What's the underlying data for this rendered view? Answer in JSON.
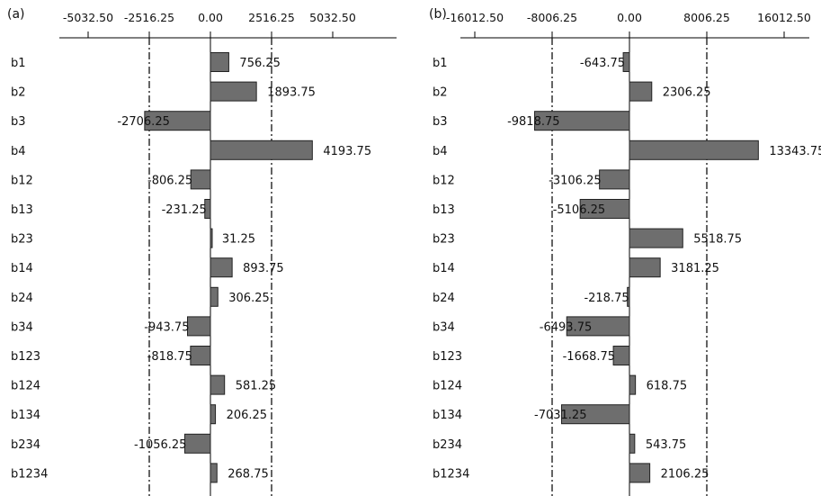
{
  "chart_data": [
    {
      "type": "bar",
      "orientation": "horizontal",
      "panel_label": "(a)",
      "categories": [
        "b1",
        "b2",
        "b3",
        "b4",
        "b12",
        "b13",
        "b23",
        "b14",
        "b24",
        "b34",
        "b123",
        "b124",
        "b134",
        "b234",
        "b1234"
      ],
      "values": [
        756.25,
        1893.75,
        -2706.25,
        4193.75,
        -806.25,
        -231.25,
        31.25,
        893.75,
        306.25,
        -943.75,
        -818.75,
        581.25,
        206.25,
        -1056.25,
        268.75
      ],
      "value_labels": [
        "756.25",
        "1893.75",
        "-2706.25",
        "4193.75",
        "-806.25",
        "-231.25",
        "31.25",
        "893.75",
        "306.25",
        "-943.75",
        "-818.75",
        "581.25",
        "206.25",
        "-1056.25",
        "268.75"
      ],
      "xticks": [
        -5032.5,
        -2516.25,
        0,
        2516.25,
        5032.5
      ],
      "xtick_labels": [
        "-5032.50",
        "-2516.25",
        "0.00",
        "2516.25",
        "5032.50"
      ],
      "xlim": [
        -5032.5,
        5032.5
      ],
      "reference_lines": [
        -2516.25,
        2516.25
      ],
      "bar_color": "#6e6e6e"
    },
    {
      "type": "bar",
      "orientation": "horizontal",
      "panel_label": "(b)",
      "categories": [
        "b1",
        "b2",
        "b3",
        "b4",
        "b12",
        "b13",
        "b23",
        "b14",
        "b24",
        "b34",
        "b123",
        "b124",
        "b134",
        "b234",
        "b1234"
      ],
      "values": [
        -643.75,
        2306.25,
        -9818.75,
        13343.75,
        -3106.25,
        -5106.25,
        5518.75,
        3181.25,
        -218.75,
        -6493.75,
        -1668.75,
        618.75,
        -7031.25,
        543.75,
        2106.25
      ],
      "value_labels": [
        "-643.75",
        "2306.25",
        "-9818.75",
        "13343.75",
        "-3106.25",
        "-5106.25",
        "5518.75",
        "3181.25",
        "-218.75",
        "-6493.75",
        "-1668.75",
        "618.75",
        "-7031.25",
        "543.75",
        "2106.25"
      ],
      "xticks": [
        -16012.5,
        -8006.25,
        0,
        8006.25,
        16012.5
      ],
      "xtick_labels": [
        "-16012.50",
        "-8006.25",
        "0.00",
        "8006.25",
        "16012.50"
      ],
      "xlim": [
        -16012.5,
        16012.5
      ],
      "reference_lines": [
        -8006.25,
        8006.25
      ],
      "bar_color": "#6e6e6e"
    }
  ]
}
